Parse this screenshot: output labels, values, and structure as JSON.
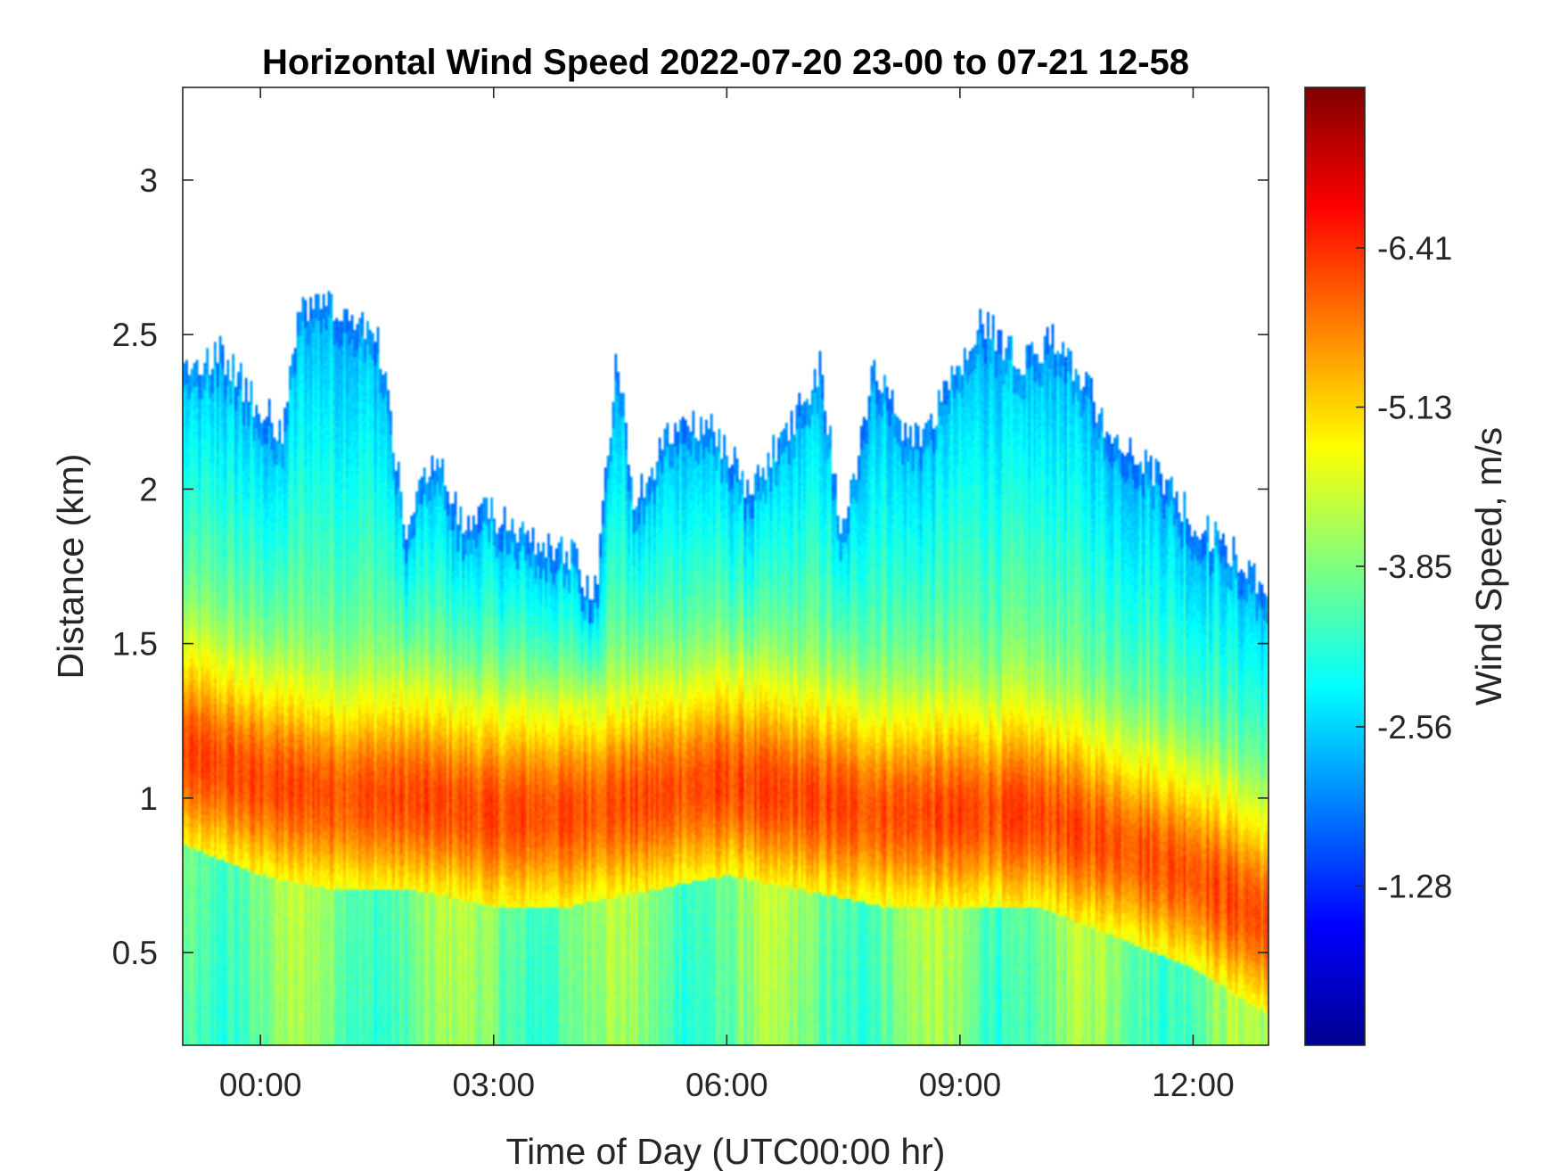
{
  "chart_data": {
    "type": "heatmap",
    "title": "Horizontal Wind Speed 2022-07-20 23-00 to 07-21 12-58",
    "xlabel": "Time of Day (UTC00:00 hr)",
    "ylabel": "Distance (km)",
    "x_ticks": [
      {
        "value": 0,
        "label": "00:00"
      },
      {
        "value": 3,
        "label": "03:00"
      },
      {
        "value": 6,
        "label": "06:00"
      },
      {
        "value": 9,
        "label": "09:00"
      },
      {
        "value": 12,
        "label": "12:00"
      }
    ],
    "y_ticks": [
      {
        "value": 0.5,
        "label": "0.5"
      },
      {
        "value": 1,
        "label": "1"
      },
      {
        "value": 1.5,
        "label": "1.5"
      },
      {
        "value": 2,
        "label": "2"
      },
      {
        "value": 2.5,
        "label": "2.5"
      },
      {
        "value": 3,
        "label": "3"
      }
    ],
    "xlim": [
      -1.0,
      12.97
    ],
    "ylim": [
      0.2,
      3.3
    ],
    "colorbar": {
      "label": "Wind Speed, m/s",
      "colormap": "jet",
      "clim": [
        -0.0,
        -7.7
      ],
      "ticks": [
        {
          "value": -1.28,
          "label": "-1.28"
        },
        {
          "value": -2.56,
          "label": "-2.56"
        },
        {
          "value": -3.85,
          "label": "-3.85"
        },
        {
          "value": -5.13,
          "label": "-5.13"
        },
        {
          "value": -6.41,
          "label": "-6.41"
        }
      ]
    },
    "grid": false,
    "legend": "none",
    "top_of_data_km": [
      [
        -1.0,
        2.38
      ],
      [
        -0.5,
        2.45
      ],
      [
        0.0,
        2.25
      ],
      [
        0.3,
        2.2
      ],
      [
        0.5,
        2.58
      ],
      [
        1.0,
        2.6
      ],
      [
        1.5,
        2.5
      ],
      [
        1.9,
        1.85
      ],
      [
        2.1,
        2.07
      ],
      [
        2.3,
        2.1
      ],
      [
        2.6,
        1.9
      ],
      [
        3.0,
        1.92
      ],
      [
        3.5,
        1.85
      ],
      [
        4.0,
        1.8
      ],
      [
        4.3,
        1.65
      ],
      [
        4.6,
        2.45
      ],
      [
        4.8,
        1.95
      ],
      [
        5.3,
        2.2
      ],
      [
        5.8,
        2.2
      ],
      [
        6.3,
        2.0
      ],
      [
        6.8,
        2.2
      ],
      [
        7.2,
        2.4
      ],
      [
        7.5,
        1.85
      ],
      [
        7.9,
        2.4
      ],
      [
        8.4,
        2.15
      ],
      [
        8.8,
        2.3
      ],
      [
        9.3,
        2.55
      ],
      [
        9.8,
        2.4
      ],
      [
        10.2,
        2.5
      ],
      [
        10.7,
        2.3
      ],
      [
        11.0,
        2.15
      ],
      [
        11.5,
        2.05
      ],
      [
        12.0,
        1.9
      ],
      [
        12.5,
        1.8
      ],
      [
        12.97,
        1.65
      ]
    ],
    "jet_core_km": [
      [
        -1.0,
        1.15
      ],
      [
        0.0,
        1.05
      ],
      [
        1.0,
        1.0
      ],
      [
        2.0,
        1.0
      ],
      [
        3.0,
        0.95
      ],
      [
        4.0,
        0.95
      ],
      [
        5.0,
        1.0
      ],
      [
        6.0,
        1.05
      ],
      [
        7.0,
        1.0
      ],
      [
        8.0,
        0.95
      ],
      [
        9.0,
        0.95
      ],
      [
        10.0,
        0.95
      ],
      [
        11.0,
        0.85
      ],
      [
        12.0,
        0.75
      ],
      [
        12.97,
        0.6
      ]
    ]
  }
}
